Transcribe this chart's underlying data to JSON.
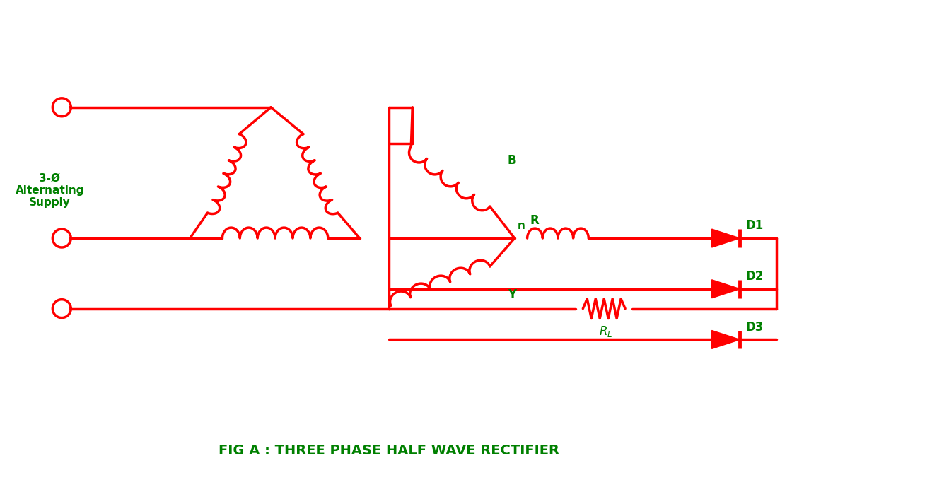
{
  "red": "#FF0000",
  "green": "#008000",
  "bg": "#FFFFFF",
  "lw": 2.5,
  "title": "FIG A : THREE PHASE HALF WAVE RECTIFIER",
  "label_supply": "3-Ø\nAlternating\nSupply",
  "label_B": "B",
  "label_Y": "Y",
  "label_R": "R",
  "label_n": "n",
  "label_D1": "D1",
  "label_D2": "D2",
  "label_D3": "D3",
  "label_RL": "RL"
}
